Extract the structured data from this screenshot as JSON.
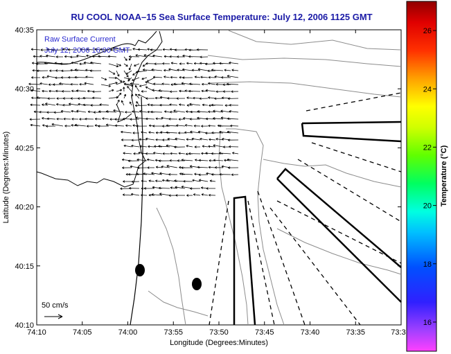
{
  "chart_data": {
    "type": "map",
    "title": "RU COOL  NOAA–15  Sea Surface Temperature:  July 12, 2006 1125 GMT",
    "xlabel": "Longitude (Degrees:Minutes)",
    "ylabel": "Latitude (Degrees:Minutes)",
    "x_ticks": [
      "74:10",
      "74:05",
      "74:00",
      "73:55",
      "73:50",
      "73:45",
      "73:40",
      "73:35",
      "73:3"
    ],
    "y_ticks": [
      "40:35",
      "40:30",
      "40:25",
      "40:20",
      "40:15",
      "40:10"
    ],
    "inset_text": [
      "Raw Surface Current",
      "July 12, 2006 16:00 GMT"
    ],
    "scale_label": "50 cm/s",
    "colorbar": {
      "label": "Temperature (°C)",
      "ticks": [
        16,
        18,
        20,
        22,
        24,
        26
      ],
      "range": [
        15,
        27
      ]
    }
  }
}
